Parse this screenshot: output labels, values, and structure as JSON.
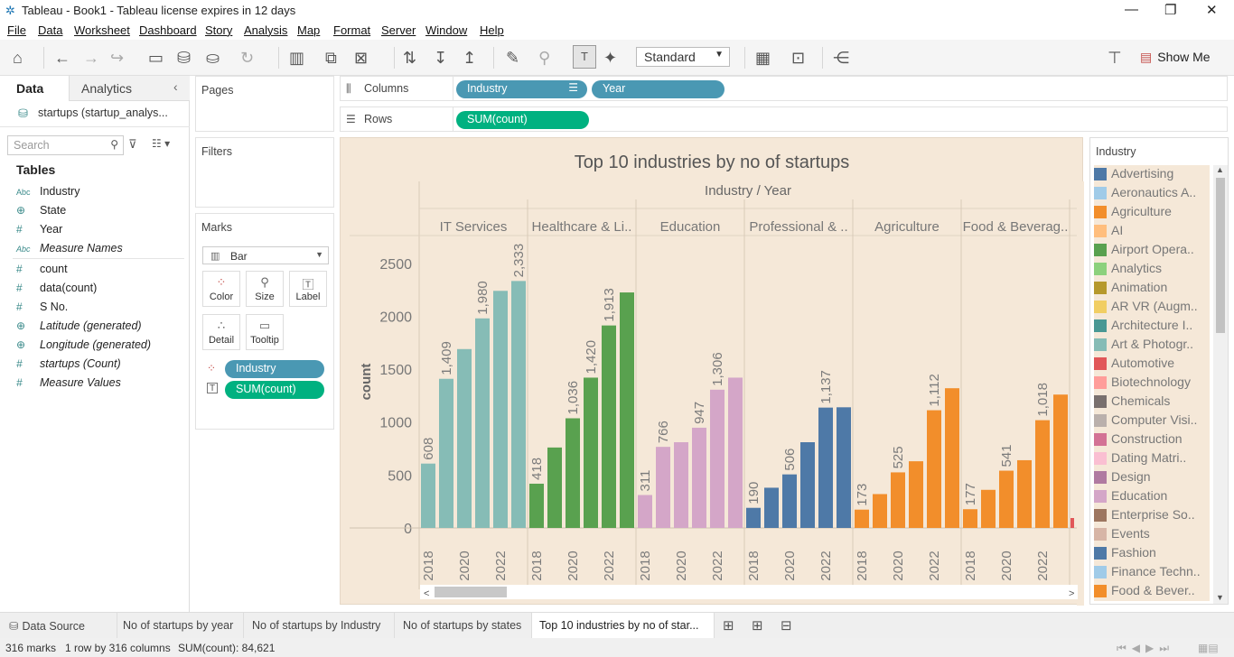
{
  "window": {
    "title": "Tableau - Book1 - Tableau license expires in 12 days"
  },
  "menu": [
    "File",
    "Data",
    "Worksheet",
    "Dashboard",
    "Story",
    "Analysis",
    "Map",
    "Format",
    "Server",
    "Window",
    "Help"
  ],
  "toolbar": {
    "fit_mode": "Standard",
    "show_me_label": "Show Me"
  },
  "left_pane": {
    "tabs": [
      "Data",
      "Analytics"
    ],
    "datasource": "startups (startup_analys...",
    "search_placeholder": "Search",
    "tables_heading": "Tables",
    "fields": [
      {
        "name": "Industry",
        "icon": "Abc",
        "italic": false
      },
      {
        "name": "State",
        "icon": "globe",
        "italic": false
      },
      {
        "name": "Year",
        "icon": "#",
        "italic": false
      },
      {
        "name": "Measure Names",
        "icon": "Abc",
        "italic": true
      },
      {
        "name": "count",
        "icon": "#",
        "italic": false
      },
      {
        "name": "data(count)",
        "icon": "#",
        "italic": false
      },
      {
        "name": "S No.",
        "icon": "#",
        "italic": false
      },
      {
        "name": "Latitude (generated)",
        "icon": "globe",
        "italic": true
      },
      {
        "name": "Longitude (generated)",
        "icon": "globe",
        "italic": true
      },
      {
        "name": "startups (Count)",
        "icon": "#",
        "italic": true
      },
      {
        "name": "Measure Values",
        "icon": "#",
        "italic": true
      }
    ]
  },
  "shelves": {
    "pages_label": "Pages",
    "filters_label": "Filters",
    "marks_label": "Marks",
    "mark_type": "Bar",
    "mark_buttons": [
      "Color",
      "Size",
      "Label",
      "Detail",
      "Tooltip"
    ],
    "marks_pills": [
      "Industry",
      "SUM(count)"
    ],
    "columns_label": "Columns",
    "rows_label": "Rows",
    "columns_pills": [
      "Industry",
      "Year"
    ],
    "rows_pills": [
      "SUM(count)"
    ]
  },
  "chart_data": {
    "type": "bar",
    "title": "Top 10 industries by no of startups",
    "header": "Industry / Year",
    "ylabel": "count",
    "ylim": [
      0,
      2500
    ],
    "yticks": [
      0,
      500,
      1000,
      1500,
      2000,
      2500
    ],
    "x_tick_labels": [
      "2018",
      "2020",
      "2022"
    ],
    "panels": [
      {
        "industry": "IT Services",
        "color": "#86bcb6",
        "values": [
          608,
          1409,
          1690,
          1980,
          2240,
          2333
        ],
        "labels": [
          "608",
          "1,409",
          "",
          "1,980",
          "",
          "2,333"
        ]
      },
      {
        "industry": "Healthcare & Li..",
        "color": "#59a14f",
        "values": [
          418,
          760,
          1036,
          1420,
          1913,
          2225
        ],
        "labels": [
          "418",
          "",
          "1,036",
          "1,420",
          "1,913",
          ""
        ]
      },
      {
        "industry": "Education",
        "color": "#d4a6c8",
        "values": [
          311,
          766,
          810,
          947,
          1306,
          1420
        ],
        "labels": [
          "311",
          "766",
          "",
          "947",
          "1,306",
          ""
        ]
      },
      {
        "industry": "Professional & ..",
        "color": "#4e79a7",
        "values": [
          190,
          380,
          506,
          810,
          1137,
          1140
        ],
        "labels": [
          "190",
          "",
          "506",
          "",
          "1,137",
          ""
        ]
      },
      {
        "industry": "Agriculture",
        "color": "#f28e2b",
        "values": [
          173,
          320,
          525,
          630,
          1112,
          1320
        ],
        "labels": [
          "173",
          "",
          "525",
          "",
          "1,112",
          ""
        ]
      },
      {
        "industry": "Food & Beverag..",
        "color": "#f28e2b",
        "values": [
          177,
          360,
          541,
          640,
          1018,
          1260
        ],
        "labels": [
          "177",
          "",
          "541",
          "",
          "1,018",
          ""
        ]
      }
    ]
  },
  "legend": {
    "title": "Industry",
    "items": [
      {
        "label": "Advertising",
        "color": "#4e79a7"
      },
      {
        "label": "Aeronautics A..",
        "color": "#a0cbe8"
      },
      {
        "label": "Agriculture",
        "color": "#f28e2b"
      },
      {
        "label": "AI",
        "color": "#ffbe7d"
      },
      {
        "label": "Airport Opera..",
        "color": "#59a14f"
      },
      {
        "label": "Analytics",
        "color": "#8cd17d"
      },
      {
        "label": "Animation",
        "color": "#b6992d"
      },
      {
        "label": "AR VR (Augm..",
        "color": "#f1ce63"
      },
      {
        "label": "Architecture I..",
        "color": "#499894"
      },
      {
        "label": "Art & Photogr..",
        "color": "#86bcb6"
      },
      {
        "label": "Automotive",
        "color": "#e15759"
      },
      {
        "label": "Biotechnology",
        "color": "#ff9d9a"
      },
      {
        "label": "Chemicals",
        "color": "#79706e"
      },
      {
        "label": "Computer Visi..",
        "color": "#bab0ac"
      },
      {
        "label": "Construction",
        "color": "#d37295"
      },
      {
        "label": "Dating Matri..",
        "color": "#fabfd2"
      },
      {
        "label": "Design",
        "color": "#b07aa1"
      },
      {
        "label": "Education",
        "color": "#d4a6c8"
      },
      {
        "label": "Enterprise So..",
        "color": "#9d7660"
      },
      {
        "label": "Events",
        "color": "#d7b5a6"
      },
      {
        "label": "Fashion",
        "color": "#4e79a7"
      },
      {
        "label": "Finance Techn..",
        "color": "#a0cbe8"
      },
      {
        "label": "Food & Bever..",
        "color": "#f28e2b"
      }
    ]
  },
  "sheet_tabs": [
    "Data Source",
    "No of startups by year",
    "No of startups by Industry",
    "No of startups by states",
    "Top 10 industries by no of star..."
  ],
  "status": {
    "marks": "316 marks",
    "dims": "1 row by 316 columns",
    "sum": "SUM(count): 84,621"
  }
}
